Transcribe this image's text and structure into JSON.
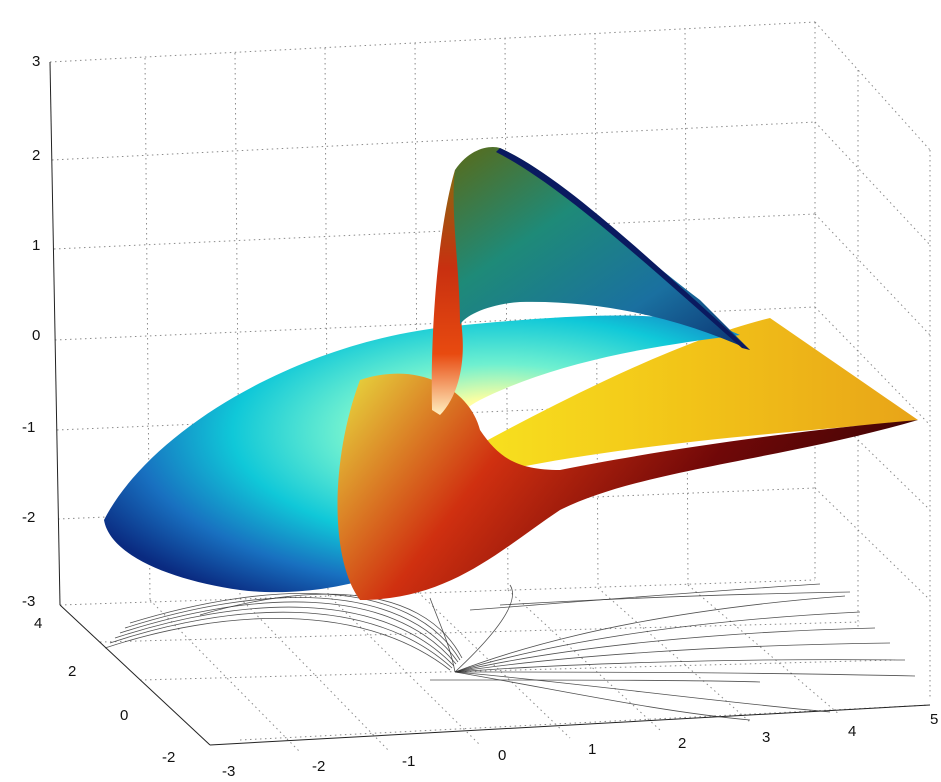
{
  "chart_data": {
    "type": "surface3d",
    "title": "",
    "xlabel": "",
    "ylabel": "",
    "zlabel": "",
    "x_ticks": [
      "-3",
      "-2",
      "-1",
      "0",
      "1",
      "2",
      "3",
      "4",
      "5"
    ],
    "y_ticks": [
      "-2",
      "0",
      "2",
      "4"
    ],
    "z_ticks": [
      "-3",
      "-2",
      "-1",
      "0",
      "1",
      "2",
      "3"
    ],
    "xlim": [
      -3,
      5
    ],
    "ylim": [
      -2,
      4
    ],
    "zlim": [
      -3,
      3
    ],
    "grid": true,
    "colormap": "jet",
    "surface": {
      "description_values": "twisted sheet spanning x from about -3 to 5, z from about -2 to 2",
      "z_min": -2.0,
      "z_max": 2.1,
      "colors": [
        "#00008f",
        "#0050ff",
        "#00d7ff",
        "#ffffbf",
        "#ffd700",
        "#ff5000",
        "#800000"
      ]
    },
    "floor_projection": {
      "type": "contour_lines",
      "color": "#333333"
    }
  }
}
